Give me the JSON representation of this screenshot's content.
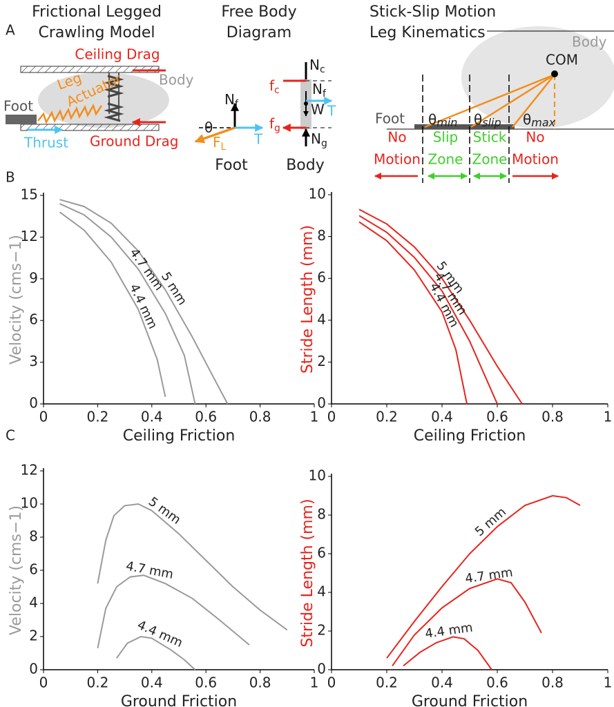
{
  "panel_labels": [
    "A",
    "B",
    "C"
  ],
  "model": {
    "title": [
      "Frictional Legged",
      "Crawling Model"
    ],
    "ceiling_drag": "Ceiling Drag",
    "body": "Body",
    "leg": "Leg",
    "actuator": "Actuator",
    "foot": "Foot",
    "thrust": "Thrust",
    "ground_drag": "Ground Drag"
  },
  "free_body": {
    "title": [
      "Free Body",
      "Diagram"
    ],
    "foot": {
      "nf": [
        "N",
        "f"
      ],
      "theta": "θ",
      "fl": [
        "F",
        "L"
      ],
      "t": "T",
      "caption": "Foot"
    },
    "body": {
      "nc": [
        "N",
        "c"
      ],
      "fc": [
        "f",
        "c"
      ],
      "nf": [
        "N",
        "f"
      ],
      "w": "W",
      "t": "T",
      "fg": [
        "f",
        "g"
      ],
      "ng": [
        "N",
        "g"
      ],
      "caption": "Body"
    }
  },
  "kinematics": {
    "title": [
      "Stick-Slip Motion",
      "Leg Kinematics"
    ],
    "body": "Body",
    "com": "COM",
    "foot": "Foot",
    "theta_min": [
      "θ",
      "min"
    ],
    "theta_slip": [
      "θ",
      "slip"
    ],
    "theta_max": [
      "θ",
      "max"
    ],
    "zones": [
      [
        "No",
        "Motion"
      ],
      [
        "Slip",
        "Zone"
      ],
      [
        "Stick",
        "Zone"
      ],
      [
        "No",
        "Motion"
      ]
    ]
  },
  "chart_data": [
    {
      "type": "line",
      "xlabel": "Ceiling Friction",
      "ylabel": "Velocity (cms−1)",
      "ylabel_color": "#9a9a9a",
      "xlim": [
        0,
        1
      ],
      "ylim": [
        0,
        15
      ],
      "xticks": [
        0,
        0.2,
        0.4,
        0.6,
        0.8,
        1
      ],
      "yticks": [
        0,
        3,
        6,
        9,
        12,
        15
      ],
      "series": [
        {
          "name": "5 mm",
          "color": "#9a9a9a",
          "x": [
            0.06,
            0.15,
            0.25,
            0.35,
            0.45,
            0.55,
            0.62,
            0.68
          ],
          "values": [
            14.7,
            14.2,
            13.0,
            11.0,
            8.2,
            4.8,
            2.2,
            0
          ]
        },
        {
          "name": "4.7 mm",
          "color": "#9a9a9a",
          "x": [
            0.06,
            0.15,
            0.25,
            0.35,
            0.45,
            0.52,
            0.56
          ],
          "values": [
            14.4,
            13.6,
            12.0,
            9.7,
            6.5,
            3.5,
            0
          ]
        },
        {
          "name": "4.4 mm",
          "color": "#9a9a9a",
          "x": [
            0.06,
            0.15,
            0.25,
            0.35,
            0.42,
            0.45
          ],
          "values": [
            13.8,
            12.5,
            10.2,
            6.8,
            3.2,
            0.5
          ]
        }
      ]
    },
    {
      "type": "line",
      "xlabel": "Ceiling Friction",
      "ylabel": "Stride Length (mm)",
      "ylabel_color": "#e8231b",
      "xlim": [
        0,
        1
      ],
      "ylim": [
        0,
        10
      ],
      "xticks": [
        0,
        0.2,
        0.4,
        0.6,
        0.8,
        1
      ],
      "yticks": [
        0,
        2,
        4,
        6,
        8,
        10
      ],
      "series": [
        {
          "name": "5 mm",
          "color": "#e8231b",
          "x": [
            0.1,
            0.2,
            0.3,
            0.4,
            0.5,
            0.6,
            0.69
          ],
          "values": [
            9.3,
            8.6,
            7.5,
            6.0,
            4.0,
            1.8,
            0
          ]
        },
        {
          "name": "4.7 mm",
          "color": "#e8231b",
          "x": [
            0.1,
            0.2,
            0.3,
            0.4,
            0.5,
            0.6
          ],
          "values": [
            9.0,
            8.2,
            7.0,
            5.4,
            3.0,
            0
          ]
        },
        {
          "name": "4.4 mm",
          "color": "#e8231b",
          "x": [
            0.1,
            0.2,
            0.3,
            0.4,
            0.45,
            0.49
          ],
          "values": [
            8.7,
            7.8,
            6.4,
            4.4,
            2.6,
            0
          ]
        }
      ]
    },
    {
      "type": "line",
      "xlabel": "Ground Friction",
      "ylabel": "Velocity (cms−1)",
      "ylabel_color": "#9a9a9a",
      "xlim": [
        0,
        1
      ],
      "ylim": [
        0,
        12
      ],
      "xticks": [
        0,
        0.2,
        0.4,
        0.6,
        0.8,
        1
      ],
      "yticks": [
        0,
        2,
        4,
        6,
        8,
        10,
        12
      ],
      "series": [
        {
          "name": "5 mm",
          "color": "#9a9a9a",
          "x": [
            0.2,
            0.23,
            0.26,
            0.3,
            0.35,
            0.4,
            0.5,
            0.6,
            0.7,
            0.8,
            0.9
          ],
          "values": [
            5.2,
            7.8,
            9.3,
            9.9,
            10.0,
            9.6,
            8.2,
            6.6,
            5.0,
            3.6,
            2.4
          ]
        },
        {
          "name": "4.7 mm",
          "color": "#9a9a9a",
          "x": [
            0.2,
            0.23,
            0.27,
            0.32,
            0.37,
            0.45,
            0.55,
            0.65,
            0.76
          ],
          "values": [
            1.3,
            3.7,
            5.0,
            5.6,
            5.7,
            5.2,
            4.3,
            3.0,
            1.5
          ]
        },
        {
          "name": "4.4 mm",
          "color": "#9a9a9a",
          "x": [
            0.27,
            0.31,
            0.36,
            0.4,
            0.47,
            0.52,
            0.56
          ],
          "values": [
            0.7,
            1.6,
            2.0,
            1.9,
            1.2,
            0.6,
            0
          ]
        }
      ]
    },
    {
      "type": "line",
      "xlabel": "Ground Friction",
      "ylabel": "Stride Length (mm)",
      "ylabel_color": "#e8231b",
      "xlim": [
        0,
        1
      ],
      "ylim": [
        0,
        10
      ],
      "xticks": [
        0,
        0.2,
        0.4,
        0.6,
        0.8,
        1
      ],
      "yticks": [
        0,
        2,
        4,
        6,
        8,
        10
      ],
      "series": [
        {
          "name": "5 mm",
          "color": "#e8231b",
          "x": [
            0.2,
            0.3,
            0.4,
            0.5,
            0.6,
            0.7,
            0.8,
            0.85,
            0.9
          ],
          "values": [
            0.6,
            2.5,
            4.3,
            6.0,
            7.4,
            8.5,
            9.0,
            8.9,
            8.5
          ]
        },
        {
          "name": "4.7 mm",
          "color": "#e8231b",
          "x": [
            0.22,
            0.3,
            0.4,
            0.5,
            0.6,
            0.65,
            0.7,
            0.76
          ],
          "values": [
            0.2,
            1.8,
            3.2,
            4.2,
            4.7,
            4.5,
            3.5,
            1.9
          ]
        },
        {
          "name": "4.4 mm",
          "color": "#e8231b",
          "x": [
            0.26,
            0.32,
            0.38,
            0.44,
            0.48,
            0.53,
            0.58
          ],
          "values": [
            0.2,
            0.9,
            1.4,
            1.7,
            1.6,
            1.0,
            0
          ]
        }
      ]
    }
  ]
}
